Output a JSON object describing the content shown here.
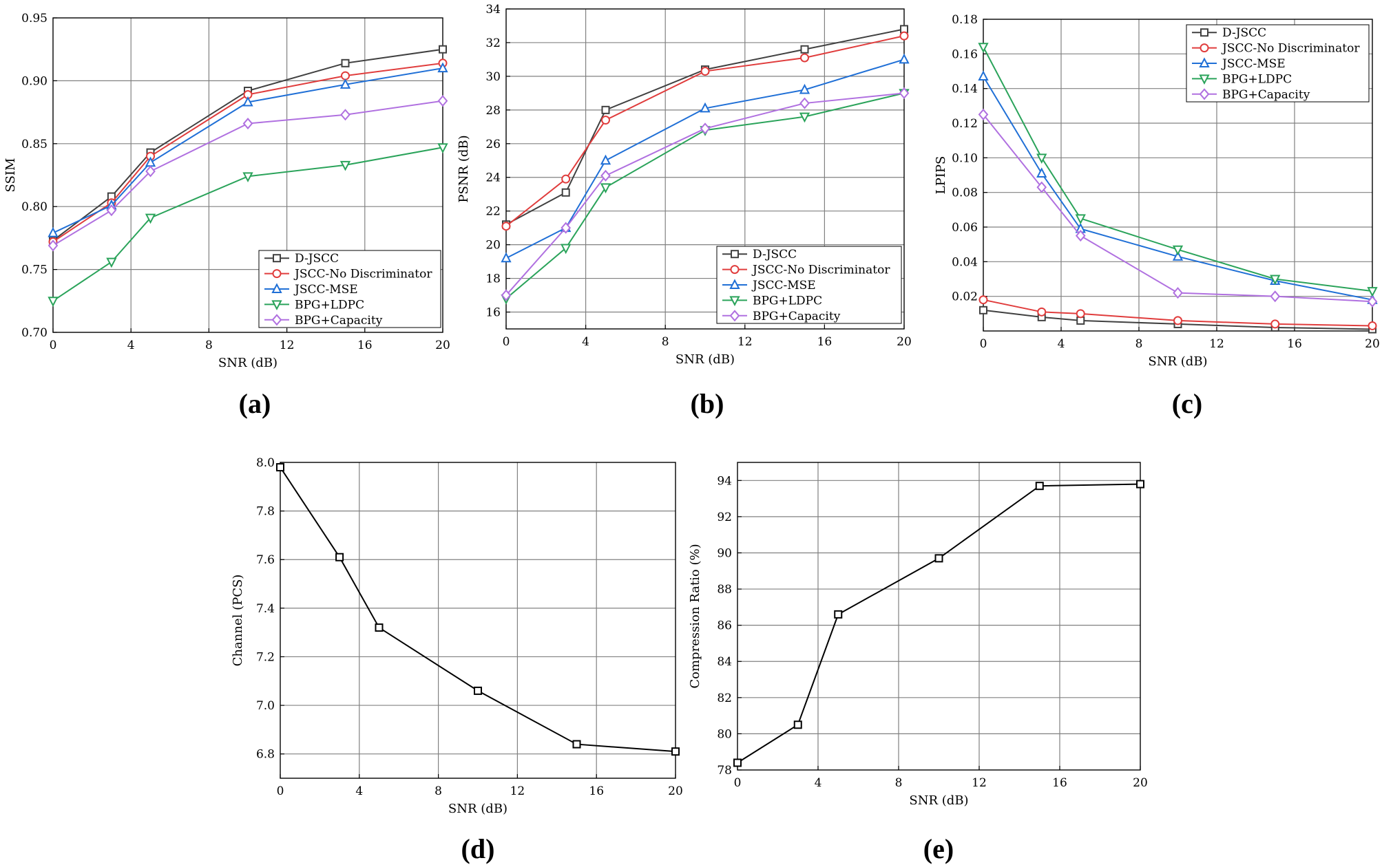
{
  "figure": {
    "colors": {
      "D-JSCC": "#404040",
      "JSCC-No Discriminator": "#e03c3c",
      "JSCC-MSE": "#1f6fd6",
      "BPG+LDPC": "#2aa35a",
      "BPG+Capacity": "#b070e0",
      "single": "#000000",
      "grid": "#808080"
    }
  },
  "chart_data": [
    {
      "id": "a",
      "panel_label": "(a)",
      "type": "line",
      "xlabel": "SNR (dB)",
      "ylabel": "SSIM",
      "xlim": [
        0,
        20
      ],
      "ylim": [
        0.7,
        0.95
      ],
      "xticks": [
        0,
        4,
        8,
        12,
        16,
        20
      ],
      "yticks": [
        0.7,
        0.75,
        0.8,
        0.85,
        0.9,
        0.95
      ],
      "ydecimals": 2,
      "grid": true,
      "legend_position": "bottom-right",
      "x": [
        0,
        3,
        5,
        10,
        15,
        20
      ],
      "series": [
        {
          "name": "D-JSCC",
          "marker": "square",
          "values": [
            0.773,
            0.808,
            0.843,
            0.892,
            0.914,
            0.925
          ]
        },
        {
          "name": "JSCC-No Discriminator",
          "marker": "circle",
          "values": [
            0.772,
            0.803,
            0.84,
            0.889,
            0.904,
            0.914
          ]
        },
        {
          "name": "JSCC-MSE",
          "marker": "triangle-up",
          "values": [
            0.779,
            0.801,
            0.835,
            0.883,
            0.897,
            0.91
          ]
        },
        {
          "name": "BPG+LDPC",
          "marker": "triangle-down",
          "values": [
            0.725,
            0.756,
            0.791,
            0.824,
            0.833,
            0.847
          ]
        },
        {
          "name": "BPG+Capacity",
          "marker": "diamond",
          "values": [
            0.769,
            0.797,
            0.828,
            0.866,
            0.873,
            0.884
          ]
        }
      ]
    },
    {
      "id": "b",
      "panel_label": "(b)",
      "type": "line",
      "xlabel": "SNR (dB)",
      "ylabel": "PSNR (dB)",
      "xlim": [
        0,
        20
      ],
      "ylim": [
        15,
        34
      ],
      "xticks": [
        0,
        4,
        8,
        12,
        16,
        20
      ],
      "yticks": [
        16,
        18,
        20,
        22,
        24,
        26,
        28,
        30,
        32,
        34
      ],
      "ydecimals": 0,
      "grid": true,
      "legend_position": "bottom-right",
      "x": [
        0,
        3,
        5,
        10,
        15,
        20
      ],
      "series": [
        {
          "name": "D-JSCC",
          "marker": "square",
          "values": [
            21.2,
            23.1,
            28.0,
            30.4,
            31.6,
            32.8
          ]
        },
        {
          "name": "JSCC-No Discriminator",
          "marker": "circle",
          "values": [
            21.1,
            23.9,
            27.4,
            30.3,
            31.1,
            32.4
          ]
        },
        {
          "name": "JSCC-MSE",
          "marker": "triangle-up",
          "values": [
            19.2,
            21.0,
            25.0,
            28.1,
            29.2,
            31.0
          ]
        },
        {
          "name": "BPG+LDPC",
          "marker": "triangle-down",
          "values": [
            16.8,
            19.8,
            23.4,
            26.8,
            27.6,
            29.0
          ]
        },
        {
          "name": "BPG+Capacity",
          "marker": "diamond",
          "values": [
            17.0,
            21.0,
            24.1,
            26.9,
            28.4,
            29.0
          ]
        }
      ]
    },
    {
      "id": "c",
      "panel_label": "(c)",
      "type": "line",
      "xlabel": "SNR (dB)",
      "ylabel": "LPIPS",
      "xlim": [
        0,
        20
      ],
      "ylim": [
        0,
        0.18
      ],
      "xticks": [
        0,
        4,
        8,
        12,
        16,
        20
      ],
      "yticks": [
        0.02,
        0.04,
        0.06,
        0.08,
        0.1,
        0.12,
        0.14,
        0.16,
        0.18
      ],
      "ydecimals": 2,
      "grid": true,
      "legend_position": "top-right",
      "x": [
        0,
        3,
        5,
        10,
        15,
        20
      ],
      "series": [
        {
          "name": "D-JSCC",
          "marker": "square",
          "values": [
            0.012,
            0.008,
            0.006,
            0.004,
            0.002,
            0.001
          ]
        },
        {
          "name": "JSCC-No Discriminator",
          "marker": "circle",
          "values": [
            0.018,
            0.011,
            0.01,
            0.006,
            0.004,
            0.003
          ]
        },
        {
          "name": "JSCC-MSE",
          "marker": "triangle-up",
          "values": [
            0.147,
            0.091,
            0.059,
            0.043,
            0.029,
            0.018
          ]
        },
        {
          "name": "BPG+LDPC",
          "marker": "triangle-down",
          "values": [
            0.164,
            0.1,
            0.065,
            0.047,
            0.03,
            0.023
          ]
        },
        {
          "name": "BPG+Capacity",
          "marker": "diamond",
          "values": [
            0.125,
            0.083,
            0.055,
            0.022,
            0.02,
            0.017
          ]
        }
      ]
    },
    {
      "id": "d",
      "panel_label": "(d)",
      "type": "line",
      "xlabel": "SNR (dB)",
      "ylabel": "Channel (PCS)",
      "xlim": [
        0,
        20
      ],
      "ylim": [
        6.7,
        8.0
      ],
      "xticks": [
        0,
        4,
        8,
        12,
        16,
        20
      ],
      "yticks": [
        6.8,
        7.0,
        7.2,
        7.4,
        7.6,
        7.8,
        8.0
      ],
      "ydecimals": 1,
      "grid": true,
      "legend_position": "none",
      "x": [
        0,
        3,
        5,
        10,
        15,
        20
      ],
      "series": [
        {
          "name": "Channel",
          "marker": "square",
          "values": [
            7.98,
            7.61,
            7.32,
            7.06,
            6.84,
            6.81
          ]
        }
      ]
    },
    {
      "id": "e",
      "panel_label": "(e)",
      "type": "line",
      "xlabel": "SNR (dB)",
      "ylabel": "Compression Ratio (%)",
      "xlim": [
        0,
        20
      ],
      "ylim": [
        78,
        95
      ],
      "xticks": [
        0,
        4,
        8,
        12,
        16,
        20
      ],
      "yticks": [
        78,
        80,
        82,
        84,
        86,
        88,
        90,
        92,
        94
      ],
      "ydecimals": 0,
      "grid": true,
      "legend_position": "none",
      "x": [
        0,
        3,
        5,
        10,
        15,
        20
      ],
      "series": [
        {
          "name": "Compression Ratio",
          "marker": "square",
          "values": [
            78.4,
            80.5,
            86.6,
            89.7,
            93.7,
            93.8
          ]
        }
      ]
    }
  ]
}
